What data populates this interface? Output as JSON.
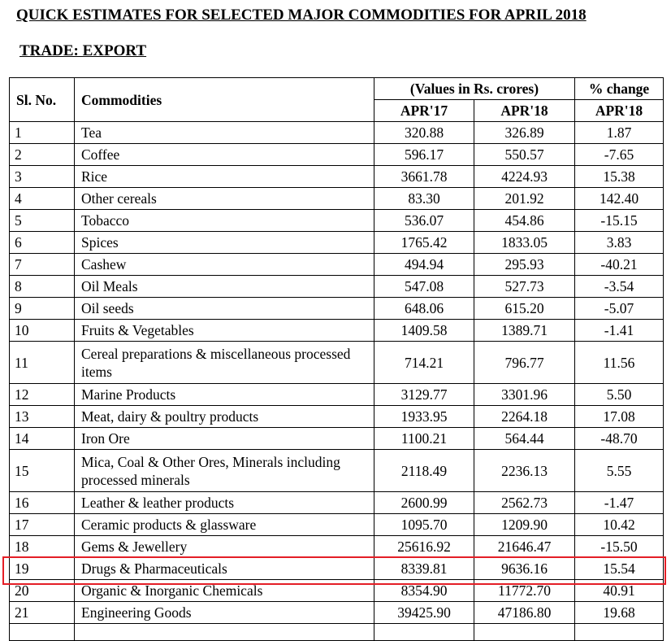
{
  "title": "QUICK ESTIMATES FOR SELECTED MAJOR COMMODITIES FOR APRIL 2018",
  "subtitle": "TRADE: EXPORT",
  "table": {
    "headers": {
      "sl_no": "Sl. No.",
      "commodities": "Commodities",
      "values_group": "(Values in Rs. crores)",
      "change_group": "% change",
      "apr17": "APR'17",
      "apr18": "APR'18",
      "change_apr18": "APR'18"
    },
    "rows": [
      {
        "sl": "1",
        "name": "Tea",
        "apr17": "320.88",
        "apr18": "326.89",
        "change": "1.87"
      },
      {
        "sl": "2",
        "name": "Coffee",
        "apr17": "596.17",
        "apr18": "550.57",
        "change": "-7.65"
      },
      {
        "sl": "3",
        "name": "Rice",
        "apr17": "3661.78",
        "apr18": "4224.93",
        "change": "15.38"
      },
      {
        "sl": "4",
        "name": "Other cereals",
        "apr17": "83.30",
        "apr18": "201.92",
        "change": "142.40"
      },
      {
        "sl": "5",
        "name": "Tobacco",
        "apr17": "536.07",
        "apr18": "454.86",
        "change": "-15.15"
      },
      {
        "sl": "6",
        "name": "Spices",
        "apr17": "1765.42",
        "apr18": "1833.05",
        "change": "3.83"
      },
      {
        "sl": "7",
        "name": "Cashew",
        "apr17": "494.94",
        "apr18": "295.93",
        "change": "-40.21"
      },
      {
        "sl": "8",
        "name": "Oil Meals",
        "apr17": "547.08",
        "apr18": "527.73",
        "change": "-3.54"
      },
      {
        "sl": "9",
        "name": "Oil seeds",
        "apr17": "648.06",
        "apr18": "615.20",
        "change": "-5.07"
      },
      {
        "sl": "10",
        "name": "Fruits & Vegetables",
        "apr17": "1409.58",
        "apr18": "1389.71",
        "change": "-1.41"
      },
      {
        "sl": "11",
        "name": "Cereal preparations & miscellaneous processed items",
        "apr17": "714.21",
        "apr18": "796.77",
        "change": "11.56"
      },
      {
        "sl": "12",
        "name": "Marine Products",
        "apr17": "3129.77",
        "apr18": "3301.96",
        "change": "5.50"
      },
      {
        "sl": "13",
        "name": "Meat, dairy & poultry products",
        "apr17": "1933.95",
        "apr18": "2264.18",
        "change": "17.08"
      },
      {
        "sl": "14",
        "name": "Iron Ore",
        "apr17": "1100.21",
        "apr18": "564.44",
        "change": "-48.70"
      },
      {
        "sl": "15",
        "name": "Mica, Coal & Other Ores, Minerals including processed minerals",
        "apr17": "2118.49",
        "apr18": "2236.13",
        "change": "5.55"
      },
      {
        "sl": "16",
        "name": "Leather & leather products",
        "apr17": "2600.99",
        "apr18": "2562.73",
        "change": "-1.47"
      },
      {
        "sl": "17",
        "name": "Ceramic products & glassware",
        "apr17": "1095.70",
        "apr18": "1209.90",
        "change": "10.42"
      },
      {
        "sl": "18",
        "name": "Gems & Jewellery",
        "apr17": "25616.92",
        "apr18": "21646.47",
        "change": "-15.50"
      },
      {
        "sl": "19",
        "name": "Drugs & Pharmaceuticals",
        "apr17": "8339.81",
        "apr18": "9636.16",
        "change": "15.54",
        "highlighted": true
      },
      {
        "sl": "20",
        "name": "Organic & Inorganic Chemicals",
        "apr17": "8354.90",
        "apr18": "11772.70",
        "change": "40.91"
      },
      {
        "sl": "21",
        "name": "Engineering Goods",
        "apr17": "39425.90",
        "apr18": "47186.80",
        "change": "19.68"
      }
    ]
  },
  "colors": {
    "highlight_border": "#e41e26"
  }
}
